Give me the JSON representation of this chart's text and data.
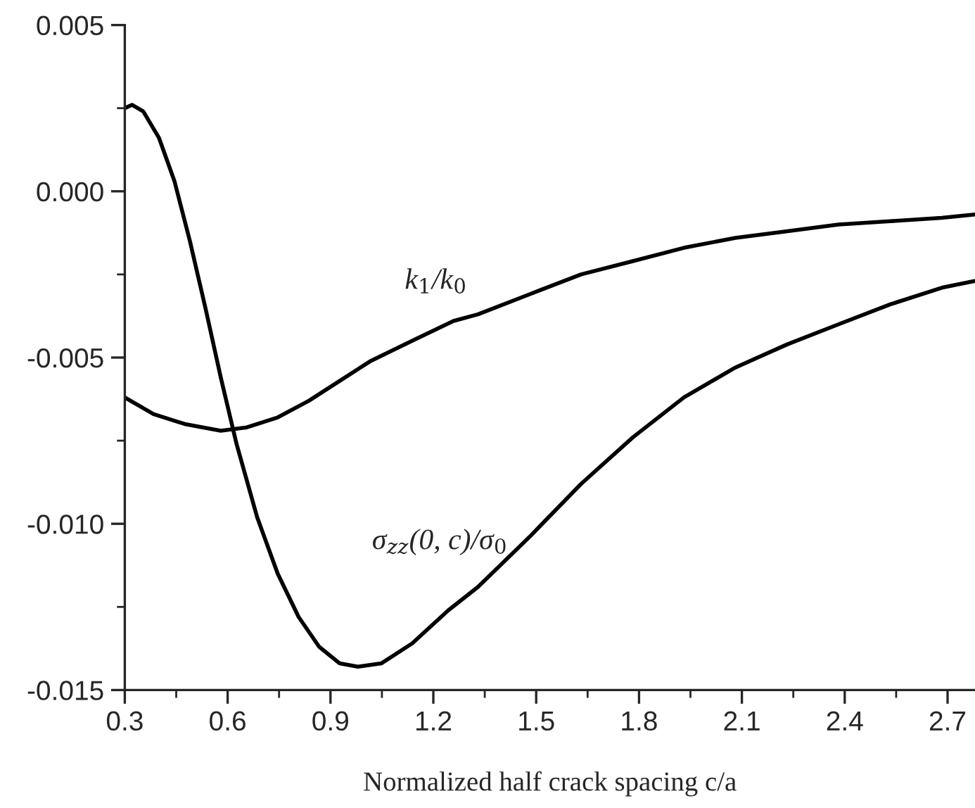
{
  "chart_data": {
    "type": "line",
    "xlabel": "Normalized half crack spacing c/a",
    "series": [
      {
        "name": "k$_{1}$/k$_{0}$",
        "color": "#000000",
        "x": [
          0.3,
          0.384,
          0.475,
          0.58,
          0.656,
          0.746,
          0.837,
          0.927,
          1.018,
          1.138,
          1.259,
          1.33,
          1.48,
          1.631,
          1.782,
          1.931,
          2.081,
          2.233,
          2.382,
          2.533,
          2.683,
          2.779
        ],
        "values": [
          -0.0062,
          -0.0067,
          -0.007,
          -0.0072,
          -0.0071,
          -0.0068,
          -0.0063,
          -0.0057,
          -0.0051,
          -0.0045,
          -0.0039,
          -0.0037,
          -0.0031,
          -0.0025,
          -0.0021,
          -0.0017,
          -0.0014,
          -0.0012,
          -0.001,
          -0.0009,
          -0.0008,
          -0.0007
        ]
      },
      {
        "name": "σ$_{zz}$(0, c)/σ$_{0}$",
        "color": "#000000",
        "x": [
          0.3,
          0.321,
          0.354,
          0.4,
          0.445,
          0.49,
          0.535,
          0.58,
          0.626,
          0.686,
          0.746,
          0.807,
          0.867,
          0.927,
          0.98,
          1.048,
          1.138,
          1.244,
          1.33,
          1.48,
          1.631,
          1.782,
          1.931,
          2.081,
          2.233,
          2.382,
          2.533,
          2.683,
          2.779
        ],
        "values": [
          0.0025,
          0.0026,
          0.0024,
          0.0016,
          0.0003,
          -0.0015,
          -0.0035,
          -0.0056,
          -0.0076,
          -0.0098,
          -0.0115,
          -0.0128,
          -0.0137,
          -0.0142,
          -0.0143,
          -0.0142,
          -0.0136,
          -0.0126,
          -0.0119,
          -0.0104,
          -0.0088,
          -0.0074,
          -0.0062,
          -0.0053,
          -0.0046,
          -0.004,
          -0.0034,
          -0.0029,
          -0.0027
        ]
      }
    ],
    "xlim": [
      0.3,
      2.78
    ],
    "xticks": [
      0.3,
      0.6,
      0.9,
      1.2,
      1.5,
      1.8,
      2.1,
      2.4,
      2.7
    ],
    "ylim": [
      -0.015,
      0.005
    ],
    "yticks": [
      {
        "value": -0.015,
        "label": "-0.015"
      },
      {
        "value": -0.01,
        "label": "-0.010"
      },
      {
        "value": -0.005,
        "label": "-0.005"
      },
      {
        "value": 0.0,
        "label": "0.000"
      },
      {
        "value": 0.005,
        "label": "0.005"
      }
    ],
    "grid": false,
    "legend": false,
    "marker": "none",
    "line_style": "solid"
  }
}
